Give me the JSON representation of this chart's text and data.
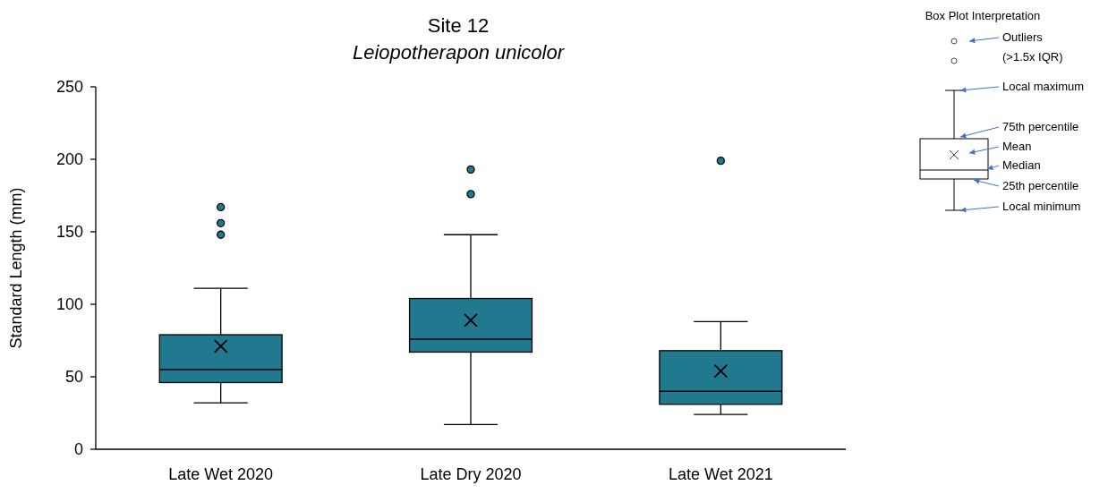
{
  "chart_data": {
    "type": "box",
    "title": "Site 12",
    "subtitle": "Leiopotherapon unicolor",
    "ylabel": "Standard Length (mm)",
    "categories": [
      "Late Wet 2020",
      "Late Dry 2020",
      "Late Wet 2021"
    ],
    "color": "#21798f",
    "boxes": [
      {
        "low": 32,
        "q1": 46,
        "median": 55,
        "q3": 79,
        "high": 111,
        "mean": 71,
        "outliers": [
          148,
          156,
          167
        ]
      },
      {
        "low": 17,
        "q1": 67,
        "median": 76,
        "q3": 104,
        "high": 148,
        "mean": 89,
        "outliers": [
          176,
          193
        ]
      },
      {
        "low": 24,
        "q1": 31,
        "median": 40,
        "q3": 68,
        "high": 88,
        "mean": 54,
        "outliers": [
          199
        ]
      }
    ],
    "ylim": [
      0,
      250
    ],
    "yticks": [
      0,
      50,
      100,
      150,
      200,
      250
    ],
    "annotations": [
      "Box Plot Interpretation",
      "Outliers\n(>1.5x IQR)",
      "Local maximum",
      "75th percentile",
      "Mean",
      "Median",
      "25th percentile",
      "Local minimum"
    ]
  }
}
